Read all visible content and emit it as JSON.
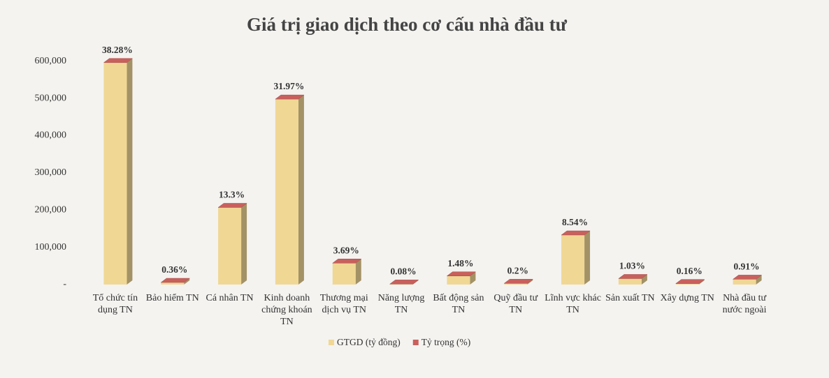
{
  "chart_data": {
    "type": "bar3d",
    "title": "Giá trị giao dịch theo cơ cấu nhà đầu tư",
    "categories": [
      "Tổ chức tín dụng TN",
      "Bảo hiểm TN",
      "Cá nhân TN",
      "Kinh doanh chứng khoán TN",
      "Thương mại dịch vụ TN",
      "Năng lượng TN",
      "Bất động sản TN",
      "Quỹ đầu tư TN",
      "Lĩnh vực khác TN",
      "Sản xuất TN",
      "Xây dựng TN",
      "Nhà đầu tư nước ngoài"
    ],
    "series": [
      {
        "name": "GTGD (tỷ đồng)",
        "color": "#f0d794",
        "values": [
          596000,
          5600,
          207000,
          498000,
          57500,
          1200,
          23000,
          3100,
          133000,
          16000,
          2500,
          14200
        ]
      },
      {
        "name": "Tỷ trọng (%)",
        "color": "#c9605c",
        "values": [
          38.28,
          0.36,
          13.3,
          31.97,
          3.69,
          0.08,
          1.48,
          0.2,
          8.54,
          1.03,
          0.16,
          0.91
        ],
        "value_labels": [
          "38.28%",
          "0.36%",
          "13.3%",
          "31.97%",
          "3.69%",
          "0.08%",
          "1.48%",
          "0.2%",
          "8.54%",
          "1.03%",
          "0.16%",
          "0.91%"
        ]
      }
    ],
    "ylim": [
      0,
      650000
    ],
    "yticks": [
      {
        "value": 0,
        "label": "-"
      },
      {
        "value": 100000,
        "label": "100,000"
      },
      {
        "value": 200000,
        "label": "200,000"
      },
      {
        "value": 300000,
        "label": "300,000"
      },
      {
        "value": 400000,
        "label": "400,000"
      },
      {
        "value": 500000,
        "label": "500,000"
      },
      {
        "value": 600000,
        "label": "600,000"
      }
    ],
    "grid": false
  }
}
